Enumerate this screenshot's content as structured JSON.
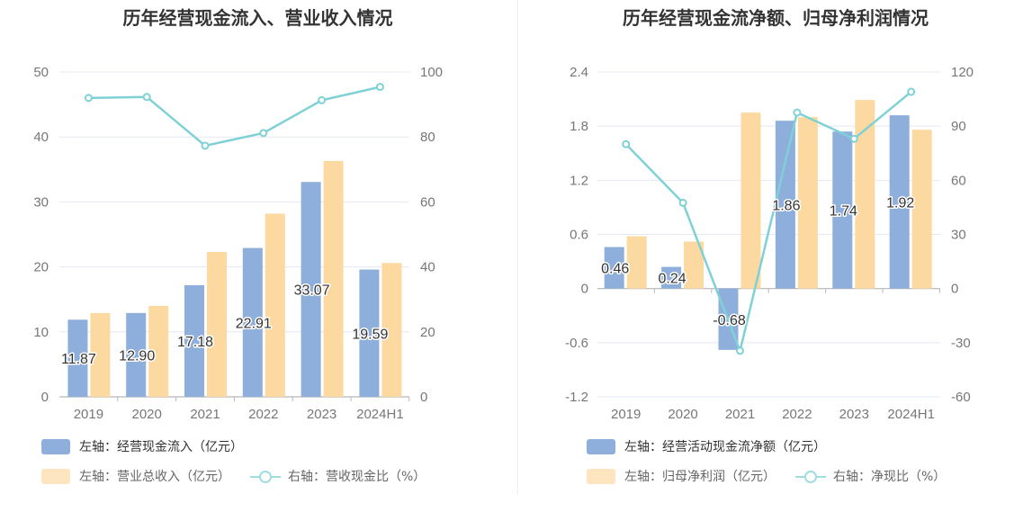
{
  "charts": [
    {
      "title": "历年经营现金流入、营业收入情况",
      "legend": [
        {
          "key": "bar1",
          "label": "左轴：经营现金流入（亿元）"
        },
        {
          "key": "bar2",
          "label": "左轴：营业总收入（亿元）"
        },
        {
          "key": "line",
          "label": "右轴：营收现金比（%）"
        }
      ]
    },
    {
      "title": "历年经营现金流净额、归母净利润情况",
      "legend": [
        {
          "key": "bar1",
          "label": "左轴：经营活动现金流净额（亿元）"
        },
        {
          "key": "bar2",
          "label": "左轴：归母净利润（亿元）"
        },
        {
          "key": "line",
          "label": "右轴：净现比（%）"
        }
      ]
    }
  ],
  "colors": {
    "bar1": "#8eaedb",
    "bar2": "#fcd9a0",
    "line": "#7fd1d6",
    "grid": "#e3e8f2",
    "axis_text": "#777777",
    "label_text": "#333333"
  },
  "chart_data": [
    {
      "type": "bar",
      "title": "历年经营现金流入、营业收入情况",
      "categories": [
        "2019",
        "2020",
        "2021",
        "2022",
        "2023",
        "2024H1"
      ],
      "series": [
        {
          "name": "左轴：经营现金流入（亿元）",
          "axis": "left",
          "values": [
            11.87,
            12.9,
            17.18,
            22.91,
            33.07,
            19.59
          ],
          "labels": [
            "11.87",
            "12.90",
            "17.18",
            "22.91",
            "33.07",
            "19.59"
          ]
        },
        {
          "name": "左轴：营业总收入（亿元）",
          "axis": "left",
          "values": [
            12.9,
            14.0,
            22.3,
            28.2,
            36.3,
            20.6
          ]
        },
        {
          "name": "右轴：营收现金比（%）",
          "axis": "right",
          "type": "line",
          "values": [
            92,
            92.3,
            77.3,
            81.2,
            91.3,
            95.4
          ]
        }
      ],
      "left_axis": {
        "min": 0,
        "max": 50,
        "ticks": [
          0,
          10,
          20,
          30,
          40,
          50
        ],
        "tick_labels": [
          "0",
          "10",
          "20",
          "30",
          "40",
          "50"
        ]
      },
      "right_axis": {
        "min": 0,
        "max": 100,
        "ticks": [
          0,
          20,
          40,
          60,
          80,
          100
        ],
        "tick_labels": [
          "0",
          "20",
          "40",
          "60",
          "80",
          "100"
        ]
      }
    },
    {
      "type": "bar",
      "title": "历年经营现金流净额、归母净利润情况",
      "categories": [
        "2019",
        "2020",
        "2021",
        "2022",
        "2023",
        "2024H1"
      ],
      "series": [
        {
          "name": "左轴：经营活动现金流净额（亿元）",
          "axis": "left",
          "values": [
            0.46,
            0.24,
            -0.68,
            1.86,
            1.74,
            1.92
          ],
          "labels": [
            "0.46",
            "0.24",
            "-0.68",
            "1.86",
            "1.74",
            "1.92"
          ]
        },
        {
          "name": "左轴：归母净利润（亿元）",
          "axis": "left",
          "values": [
            0.58,
            0.52,
            1.95,
            1.9,
            2.09,
            1.76
          ]
        },
        {
          "name": "右轴：净现比（%）",
          "axis": "right",
          "type": "line",
          "values": [
            80,
            47.5,
            -34.5,
            97.5,
            83,
            109
          ]
        }
      ],
      "left_axis": {
        "min": -1.2,
        "max": 2.4,
        "ticks": [
          -1.2,
          -0.6,
          0,
          0.6,
          1.2,
          1.8,
          2.4
        ],
        "tick_labels": [
          "-1.2",
          "-0.6",
          "0",
          "0.6",
          "1.2",
          "1.8",
          "2.4"
        ]
      },
      "right_axis": {
        "min": -60,
        "max": 120,
        "ticks": [
          -60,
          -30,
          0,
          30,
          60,
          90,
          120
        ],
        "tick_labels": [
          "-60",
          "-30",
          "0",
          "30",
          "60",
          "90",
          "120"
        ]
      }
    }
  ]
}
